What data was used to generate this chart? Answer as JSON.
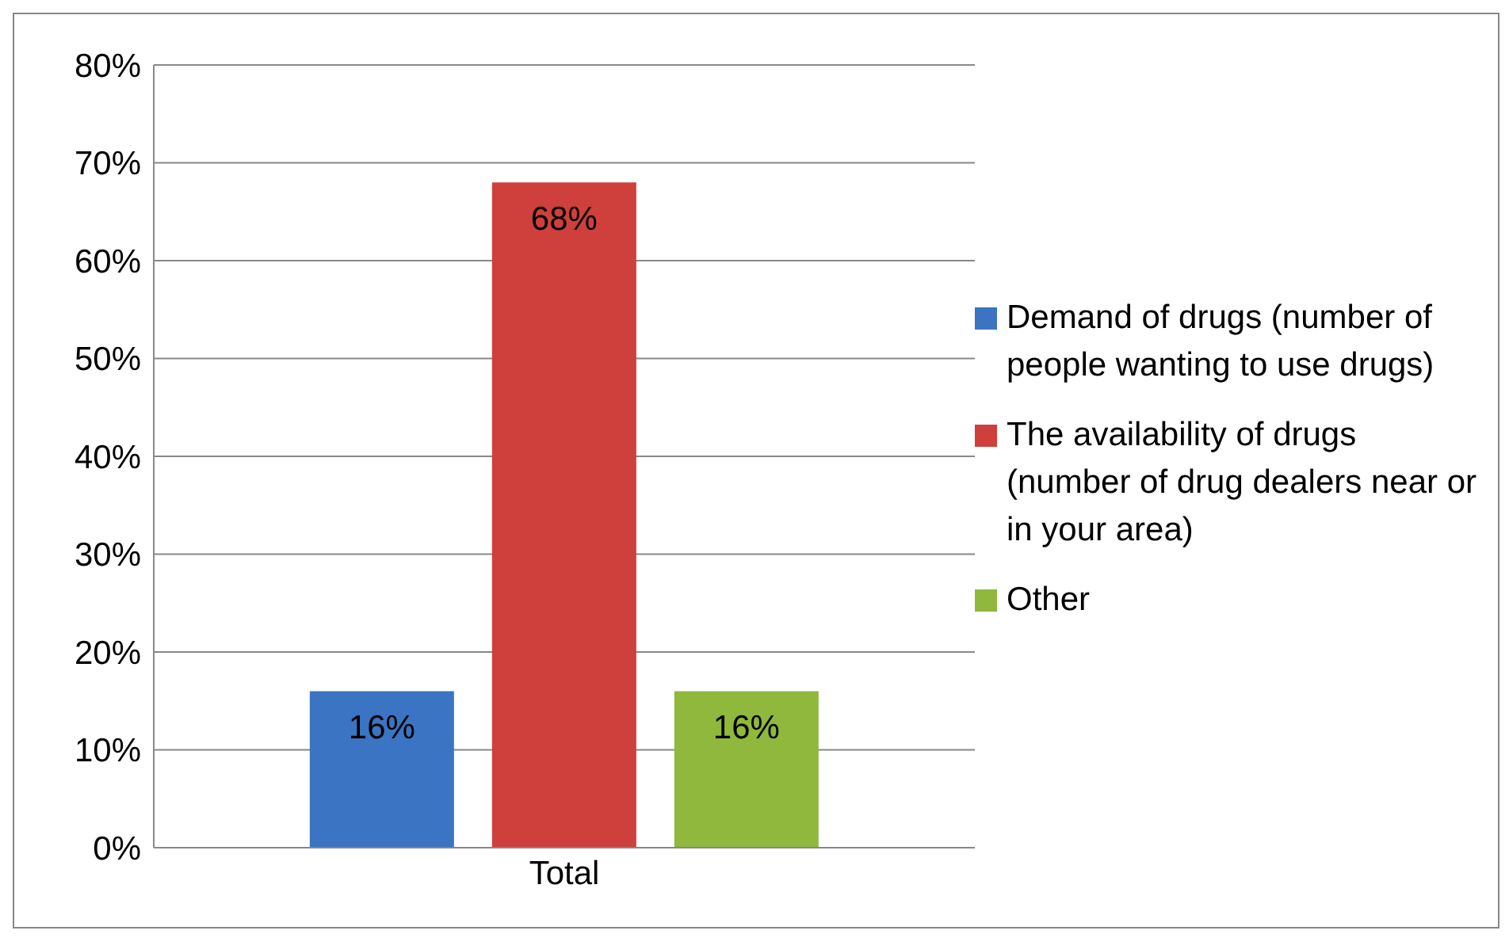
{
  "chart_data": {
    "type": "bar",
    "categories": [
      "Total"
    ],
    "series": [
      {
        "name": "Demand of drugs (number of people wanting to use drugs)",
        "color": "#3a74c2",
        "values": [
          16
        ],
        "value_labels": [
          "16%"
        ]
      },
      {
        "name": "The availability of drugs (number of drug dealers near or in your area)",
        "color": "#cf3f3c",
        "values": [
          68
        ],
        "value_labels": [
          "68%"
        ]
      },
      {
        "name": "Other",
        "color": "#8fb83c",
        "values": [
          16
        ],
        "value_labels": [
          "16%"
        ]
      }
    ],
    "ylim": [
      0,
      80
    ],
    "yticks": [
      {
        "value": 0,
        "label": "0%"
      },
      {
        "value": 10,
        "label": "10%"
      },
      {
        "value": 20,
        "label": "20%"
      },
      {
        "value": 30,
        "label": "30%"
      },
      {
        "value": 40,
        "label": "40%"
      },
      {
        "value": 50,
        "label": "50%"
      },
      {
        "value": 60,
        "label": "60%"
      },
      {
        "value": 70,
        "label": "70%"
      },
      {
        "value": 80,
        "label": "80%"
      }
    ],
    "grid": "y",
    "legend": "right"
  }
}
